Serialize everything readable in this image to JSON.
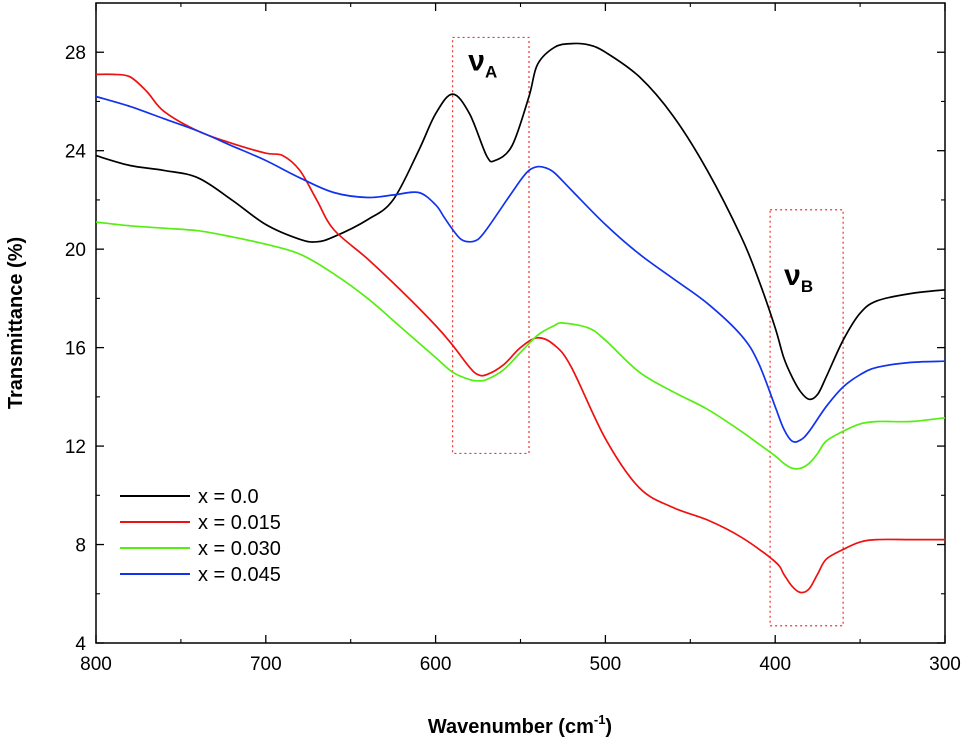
{
  "chart_data": {
    "type": "line",
    "xlabel_main": "Wavenumber (cm",
    "xlabel_sup": "-1",
    "xlabel_end": ")",
    "ylabel": "Transmittance (%)",
    "xlim": [
      800,
      300
    ],
    "ylim": [
      4,
      30
    ],
    "x_ticks": [
      800,
      700,
      600,
      500,
      400,
      300
    ],
    "y_ticks": [
      4,
      8,
      12,
      16,
      20,
      24,
      28
    ],
    "legend_position": "bottom-left",
    "annotations": [
      {
        "base": "ν",
        "sub": "A",
        "box_x": [
          545,
          590
        ],
        "box_y": [
          11.7,
          28.6
        ]
      },
      {
        "base": "ν",
        "sub": "B",
        "box_x": [
          360,
          403
        ],
        "box_y": [
          4.7,
          21.6
        ]
      }
    ],
    "series": [
      {
        "name": "x = 0.0",
        "color": "#000000",
        "x": [
          800,
          780,
          760,
          740,
          720,
          700,
          680,
          670,
          660,
          640,
          625,
          610,
          600,
          590,
          580,
          570,
          565,
          555,
          545,
          540,
          530,
          520,
          510,
          500,
          480,
          460,
          440,
          420,
          410,
          400,
          395,
          390,
          385,
          380,
          375,
          370,
          360,
          350,
          340,
          320,
          300
        ],
        "y": [
          23.8,
          23.4,
          23.2,
          22.9,
          22.0,
          21.0,
          20.4,
          20.3,
          20.5,
          21.2,
          22.0,
          24.0,
          25.5,
          26.3,
          25.5,
          23.8,
          23.6,
          24.2,
          26.2,
          27.5,
          28.2,
          28.35,
          28.3,
          28.0,
          27.0,
          25.4,
          23.2,
          20.5,
          18.8,
          16.8,
          15.6,
          14.8,
          14.2,
          13.9,
          14.1,
          14.8,
          16.3,
          17.4,
          17.9,
          18.2,
          18.35
        ]
      },
      {
        "name": "x = 0.015",
        "color": "#ee1111",
        "x": [
          800,
          790,
          780,
          770,
          760,
          740,
          720,
          700,
          690,
          680,
          670,
          660,
          640,
          620,
          600,
          590,
          580,
          575,
          570,
          560,
          550,
          540,
          530,
          520,
          500,
          480,
          460,
          440,
          420,
          400,
          395,
          390,
          385,
          380,
          375,
          370,
          360,
          350,
          340,
          320,
          300
        ],
        "y": [
          27.1,
          27.1,
          27.0,
          26.4,
          25.6,
          24.8,
          24.3,
          23.9,
          23.8,
          23.2,
          22.0,
          20.8,
          19.6,
          18.3,
          16.9,
          16.1,
          15.2,
          14.9,
          14.9,
          15.3,
          16.0,
          16.4,
          16.1,
          15.2,
          12.3,
          10.3,
          9.5,
          9.0,
          8.3,
          7.3,
          6.8,
          6.3,
          6.05,
          6.2,
          6.8,
          7.4,
          7.8,
          8.1,
          8.2,
          8.2,
          8.2
        ]
      },
      {
        "name": "x = 0.030",
        "color": "#55ee11",
        "x": [
          800,
          780,
          760,
          740,
          720,
          700,
          680,
          660,
          640,
          620,
          600,
          590,
          580,
          575,
          570,
          560,
          550,
          540,
          530,
          525,
          510,
          500,
          480,
          460,
          440,
          420,
          410,
          400,
          395,
          390,
          385,
          380,
          375,
          370,
          360,
          350,
          340,
          320,
          300
        ],
        "y": [
          21.1,
          20.95,
          20.85,
          20.75,
          20.5,
          20.2,
          19.8,
          19.0,
          18.0,
          16.8,
          15.6,
          15.0,
          14.7,
          14.65,
          14.7,
          15.1,
          15.8,
          16.5,
          16.9,
          17.0,
          16.8,
          16.3,
          15.0,
          14.2,
          13.5,
          12.6,
          12.1,
          11.6,
          11.3,
          11.1,
          11.1,
          11.3,
          11.7,
          12.2,
          12.6,
          12.9,
          13.0,
          13.0,
          13.15
        ]
      },
      {
        "name": "x = 0.045",
        "color": "#1133ee",
        "x": [
          800,
          780,
          760,
          740,
          720,
          700,
          680,
          660,
          640,
          625,
          610,
          600,
          595,
          590,
          585,
          580,
          575,
          570,
          560,
          550,
          545,
          540,
          535,
          530,
          520,
          500,
          480,
          460,
          440,
          420,
          410,
          400,
          395,
          390,
          385,
          380,
          370,
          360,
          350,
          340,
          320,
          300
        ],
        "y": [
          26.2,
          25.8,
          25.3,
          24.8,
          24.2,
          23.6,
          22.9,
          22.3,
          22.1,
          22.2,
          22.3,
          21.8,
          21.3,
          20.8,
          20.4,
          20.3,
          20.4,
          20.8,
          21.8,
          22.8,
          23.2,
          23.35,
          23.3,
          23.1,
          22.4,
          21.0,
          19.8,
          18.8,
          17.8,
          16.5,
          15.4,
          13.6,
          12.7,
          12.2,
          12.25,
          12.6,
          13.6,
          14.4,
          14.9,
          15.2,
          15.4,
          15.45
        ]
      }
    ]
  }
}
